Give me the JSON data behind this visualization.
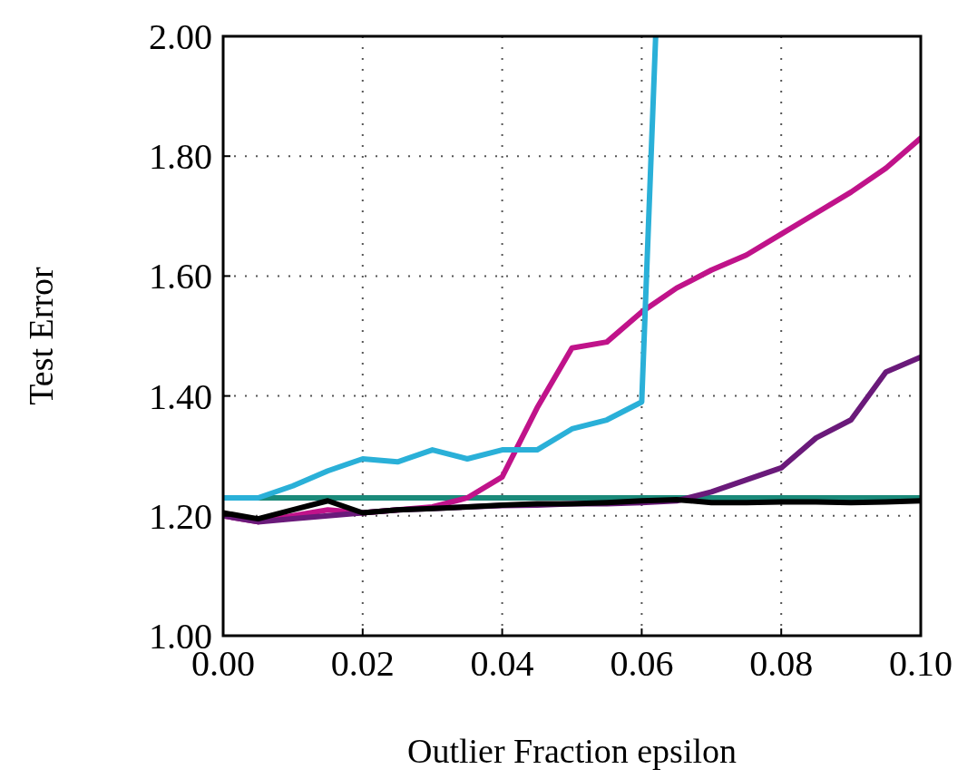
{
  "chart_data": {
    "type": "line",
    "xlabel": "Outlier Fraction epsilon",
    "ylabel": "Test Error",
    "x": [
      0,
      0.005,
      0.01,
      0.015,
      0.02,
      0.025,
      0.03,
      0.035,
      0.04,
      0.045,
      0.05,
      0.055,
      0.06,
      0.065,
      0.07,
      0.075,
      0.08,
      0.085,
      0.09,
      0.095,
      0.1
    ],
    "series": [
      {
        "color": "#1a8a7a",
        "values": [
          1.23,
          1.23,
          1.23,
          1.23,
          1.23,
          1.23,
          1.23,
          1.23,
          1.23,
          1.23,
          1.23,
          1.23,
          1.23,
          1.23,
          1.23,
          1.23,
          1.23,
          1.23,
          1.23,
          1.23,
          1.23
        ]
      },
      {
        "color": "#c0138a",
        "values": [
          1.2,
          1.19,
          1.2,
          1.21,
          1.205,
          1.21,
          1.215,
          1.23,
          1.265,
          1.38,
          1.48,
          1.49,
          1.54,
          1.58,
          1.61,
          1.635,
          1.67,
          1.705,
          1.74,
          1.78,
          1.83
        ]
      },
      {
        "color": "#6a1a7a",
        "values": [
          1.2,
          1.19,
          1.195,
          1.2,
          1.205,
          1.21,
          1.212,
          1.215,
          1.217,
          1.218,
          1.22,
          1.22,
          1.222,
          1.225,
          1.24,
          1.26,
          1.28,
          1.33,
          1.36,
          1.44,
          1.465
        ]
      },
      {
        "color": "#2ab0d8",
        "x": [
          0,
          0.005,
          0.01,
          0.015,
          0.02,
          0.025,
          0.03,
          0.035,
          0.04,
          0.045,
          0.05,
          0.055,
          0.06,
          0.062
        ],
        "values": [
          1.23,
          1.23,
          1.25,
          1.275,
          1.295,
          1.29,
          1.31,
          1.295,
          1.31,
          1.31,
          1.345,
          1.36,
          1.39,
          2.0
        ]
      },
      {
        "color": "#000000",
        "values": [
          1.205,
          1.195,
          1.21,
          1.225,
          1.205,
          1.21,
          1.212,
          1.215,
          1.218,
          1.22,
          1.22,
          1.222,
          1.225,
          1.227,
          1.222,
          1.222,
          1.223,
          1.223,
          1.222,
          1.223,
          1.225
        ]
      }
    ],
    "xlim": [
      0,
      0.1
    ],
    "xticks": [
      {
        "value": 0,
        "label": "0.00"
      },
      {
        "value": 0.02,
        "label": "0.02"
      },
      {
        "value": 0.04,
        "label": "0.04"
      },
      {
        "value": 0.06,
        "label": "0.06"
      },
      {
        "value": 0.08,
        "label": "0.08"
      },
      {
        "value": 0.1,
        "label": "0.10"
      }
    ],
    "ylim": [
      1,
      2
    ],
    "yticks": [
      {
        "value": 1,
        "label": "1.00"
      },
      {
        "value": 1.2,
        "label": "1.20"
      },
      {
        "value": 1.4,
        "label": "1.40"
      },
      {
        "value": 1.6,
        "label": "1.60"
      },
      {
        "value": 1.8,
        "label": "1.80"
      },
      {
        "value": 2,
        "label": "2.00"
      }
    ],
    "grid": true,
    "marker": "none",
    "line_style": "solid"
  }
}
